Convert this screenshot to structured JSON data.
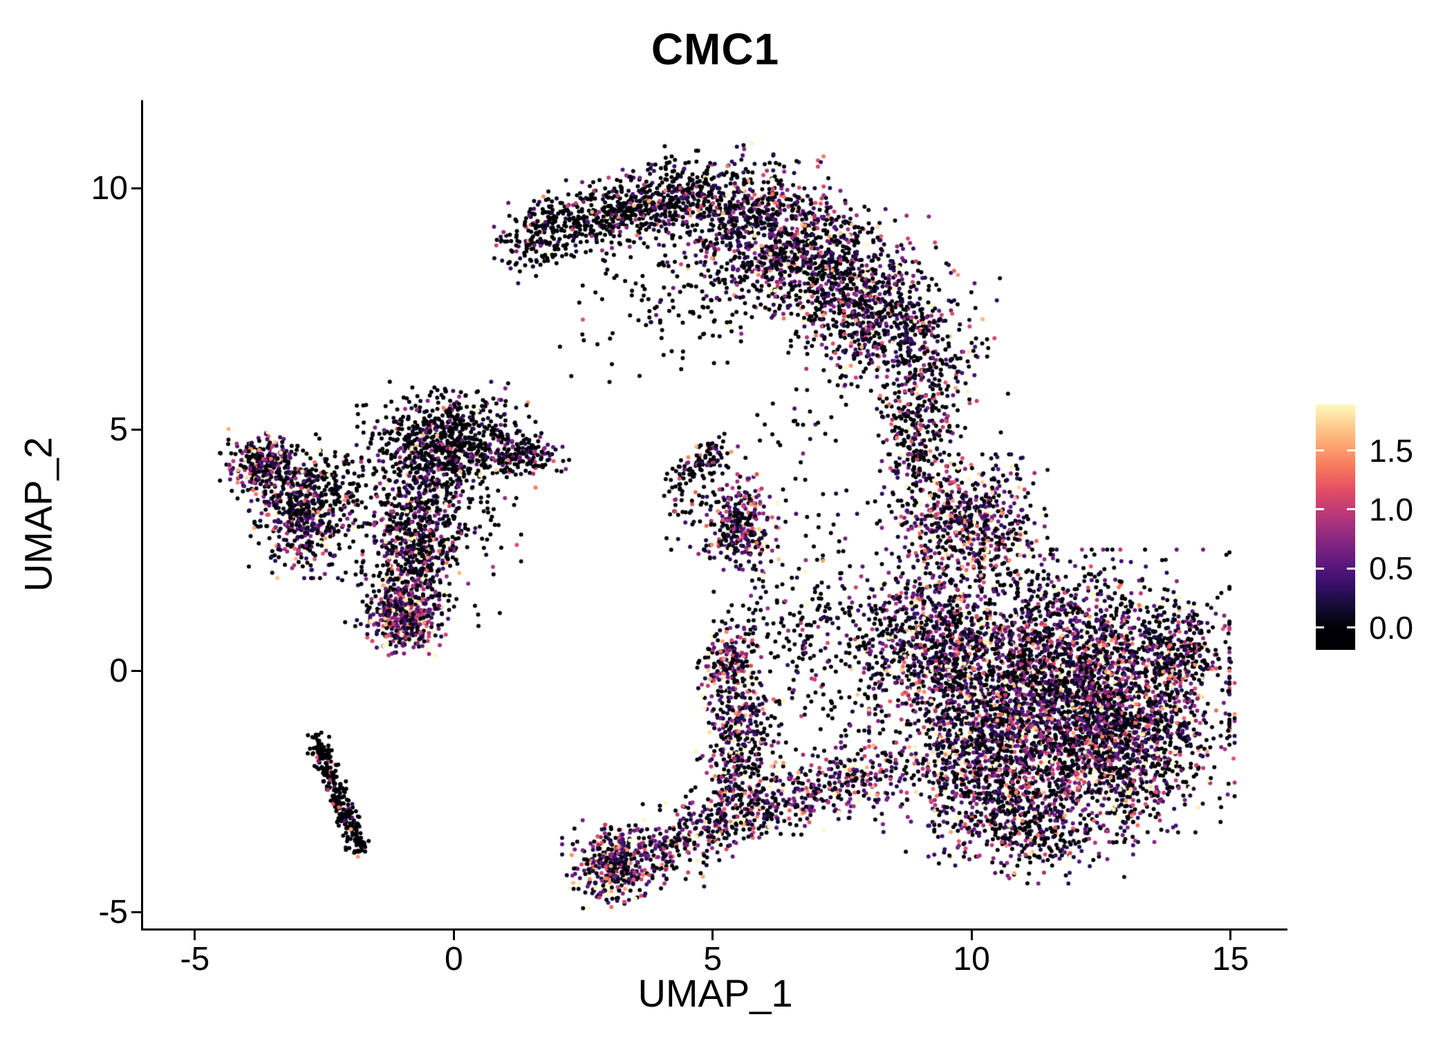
{
  "title": "CMC1",
  "axes": {
    "x": {
      "label": "UMAP_1",
      "ticks": [
        -5,
        0,
        5,
        10,
        15
      ]
    },
    "y": {
      "label": "UMAP_2",
      "ticks": [
        10,
        5,
        0,
        -5
      ]
    }
  },
  "colorbar": {
    "entries": [
      {
        "label": "1.5",
        "value": 1.5
      },
      {
        "label": "1.0",
        "value": 1.0
      },
      {
        "label": "0.5",
        "value": 0.5
      },
      {
        "label": "0.0",
        "value": 0.0
      }
    ],
    "vmin": -0.19,
    "vmax": 1.89
  },
  "chart_data": {
    "type": "scatter",
    "title": "CMC1",
    "xlabel": "UMAP_1",
    "ylabel": "UMAP_2",
    "xlim": [
      -6.0,
      16.1
    ],
    "ylim": [
      -5.33,
      11.83
    ],
    "grid": false,
    "legend_position": "right",
    "point_radius": 3,
    "seed": 42,
    "color_scale": {
      "name": "magma",
      "domain": [
        0,
        1.9
      ],
      "stops": [
        [
          0.0,
          "#000004"
        ],
        [
          0.1,
          "#140e36"
        ],
        [
          0.2,
          "#3b0f70"
        ],
        [
          0.3,
          "#641a80"
        ],
        [
          0.4,
          "#8c2981"
        ],
        [
          0.5,
          "#b73779"
        ],
        [
          0.6,
          "#de4968"
        ],
        [
          0.7,
          "#f7705c"
        ],
        [
          0.8,
          "#fe9f6d"
        ],
        [
          0.9,
          "#fdcd90"
        ],
        [
          1.0,
          "#fcfdbf"
        ]
      ]
    },
    "clusters": [
      {
        "name": "top-arc-left",
        "path": [
          [
            1.25,
            8.7
          ],
          [
            1.9,
            9.15
          ],
          [
            2.6,
            9.4
          ],
          [
            3.3,
            9.6
          ],
          [
            4.0,
            9.8
          ],
          [
            4.6,
            9.9
          ]
        ],
        "jitter": [
          0.38,
          0.33
        ],
        "count": 750,
        "p0": 0.72,
        "mean": 0.5
      },
      {
        "name": "top-arc-main",
        "path": [
          [
            4.9,
            9.7
          ],
          [
            5.7,
            9.4
          ],
          [
            6.4,
            8.95
          ],
          [
            7.1,
            8.45
          ],
          [
            7.8,
            7.8
          ],
          [
            8.45,
            7.1
          ],
          [
            8.95,
            6.35
          ]
        ],
        "jitter": [
          0.75,
          0.62
        ],
        "count": 2100,
        "p0": 0.45,
        "mean": 0.6
      },
      {
        "name": "top-arc-under",
        "center": [
          4.6,
          7.9
        ],
        "jitter": [
          1.05,
          0.75
        ],
        "count": 170,
        "p0": 0.8,
        "mean": 0.5
      },
      {
        "name": "right-connector",
        "path": [
          [
            9.2,
            6.1
          ],
          [
            9.05,
            5.4
          ],
          [
            8.95,
            4.7
          ],
          [
            9.05,
            4.05
          ]
        ],
        "jitter": [
          0.34,
          0.3
        ],
        "count": 280,
        "p0": 0.5,
        "mean": 0.6
      },
      {
        "name": "right-upper-blob",
        "center": [
          9.9,
          3.1
        ],
        "jitter": [
          0.68,
          0.58
        ],
        "count": 620,
        "p0": 0.33,
        "mean": 0.75
      },
      {
        "name": "right-main-1",
        "center": [
          11.5,
          0.0
        ],
        "jitter": [
          1.45,
          1.05
        ],
        "count": 2600,
        "p0": 0.38,
        "mean": 0.65
      },
      {
        "name": "right-main-2",
        "center": [
          12.8,
          -1.5
        ],
        "jitter": [
          0.95,
          0.85
        ],
        "count": 1200,
        "p0": 0.38,
        "mean": 0.65
      },
      {
        "name": "right-main-3",
        "center": [
          10.3,
          -1.8
        ],
        "jitter": [
          0.9,
          0.85
        ],
        "count": 900,
        "p0": 0.38,
        "mean": 0.65
      },
      {
        "name": "right-main-4",
        "center": [
          9.2,
          0.7
        ],
        "jitter": [
          0.65,
          0.75
        ],
        "count": 520,
        "p0": 0.4,
        "mean": 0.65
      },
      {
        "name": "right-tip",
        "center": [
          14.0,
          0.3
        ],
        "jitter": [
          0.42,
          0.48
        ],
        "count": 260,
        "p0": 0.42,
        "mean": 0.6
      },
      {
        "name": "right-bottom-tail",
        "center": [
          11.2,
          -3.2
        ],
        "jitter": [
          0.8,
          0.5
        ],
        "count": 380,
        "p0": 0.4,
        "mean": 0.6
      },
      {
        "name": "bottom-stream",
        "path": [
          [
            3.6,
            -3.9
          ],
          [
            4.4,
            -3.5
          ],
          [
            5.2,
            -3.1
          ],
          [
            6.0,
            -2.8
          ],
          [
            6.8,
            -2.5
          ],
          [
            7.6,
            -2.3
          ],
          [
            8.3,
            -2.1
          ]
        ],
        "jitter": [
          0.42,
          0.34
        ],
        "count": 720,
        "p0": 0.35,
        "mean": 0.7
      },
      {
        "name": "bottom-left-cluster",
        "center": [
          3.1,
          -4.0
        ],
        "jitter": [
          0.42,
          0.38
        ],
        "count": 380,
        "p0": 0.3,
        "mean": 0.7
      },
      {
        "name": "center-branch",
        "path": [
          [
            5.3,
            -2.5
          ],
          [
            5.5,
            -1.8
          ],
          [
            5.6,
            -1.1
          ],
          [
            5.5,
            -0.45
          ]
        ],
        "jitter": [
          0.33,
          0.3
        ],
        "count": 360,
        "p0": 0.38,
        "mean": 0.7
      },
      {
        "name": "center-branch-top",
        "center": [
          5.35,
          0.2
        ],
        "jitter": [
          0.27,
          0.33
        ],
        "count": 170,
        "p0": 0.28,
        "mean": 0.78
      },
      {
        "name": "center-sparse-upper",
        "center": [
          6.35,
          1.0
        ],
        "jitter": [
          0.45,
          0.55
        ],
        "count": 60,
        "p0": 0.7,
        "mean": 0.5
      },
      {
        "name": "mid-sparse",
        "center": [
          7.3,
          0.5
        ],
        "jitter": [
          0.95,
          1.15
        ],
        "count": 260,
        "p0": 0.62,
        "mean": 0.55
      },
      {
        "name": "small-center-arm",
        "path": [
          [
            4.35,
            4.0
          ],
          [
            4.75,
            4.3
          ],
          [
            5.15,
            4.6
          ]
        ],
        "jitter": [
          0.2,
          0.18
        ],
        "count": 100,
        "p0": 0.65,
        "mean": 0.55
      },
      {
        "name": "small-center-dense",
        "center": [
          5.55,
          3.0
        ],
        "jitter": [
          0.3,
          0.45
        ],
        "count": 280,
        "p0": 0.27,
        "mean": 0.75
      },
      {
        "name": "small-center-sparse",
        "center": [
          4.7,
          3.3
        ],
        "jitter": [
          0.4,
          0.4
        ],
        "count": 60,
        "p0": 0.7,
        "mean": 0.5
      },
      {
        "name": "left-group-west",
        "center": [
          -3.7,
          4.3
        ],
        "jitter": [
          0.34,
          0.3
        ],
        "count": 280,
        "p0": 0.38,
        "mean": 0.7
      },
      {
        "name": "left-group-main",
        "center": [
          -2.95,
          3.25
        ],
        "jitter": [
          0.42,
          0.55
        ],
        "count": 450,
        "p0": 0.42,
        "mean": 0.68
      },
      {
        "name": "left-group-bridge",
        "center": [
          -2.3,
          3.9
        ],
        "jitter": [
          0.5,
          0.45
        ],
        "count": 140,
        "p0": 0.68,
        "mean": 0.5
      },
      {
        "name": "centerleft-top",
        "center": [
          -0.15,
          4.75
        ],
        "jitter": [
          0.72,
          0.52
        ],
        "count": 720,
        "p0": 0.7,
        "mean": 0.5
      },
      {
        "name": "centerleft-arm",
        "path": [
          [
            0.8,
            4.5
          ],
          [
            1.35,
            4.5
          ],
          [
            1.8,
            4.42
          ]
        ],
        "jitter": [
          0.24,
          0.2
        ],
        "count": 150,
        "p0": 0.6,
        "mean": 0.55
      },
      {
        "name": "centerleft-band",
        "path": [
          [
            -0.5,
            3.9
          ],
          [
            -0.68,
            3.2
          ],
          [
            -0.8,
            2.5
          ],
          [
            -0.9,
            1.8
          ],
          [
            -0.95,
            1.15
          ]
        ],
        "jitter": [
          0.4,
          0.34
        ],
        "count": 680,
        "p0": 0.45,
        "mean": 0.62
      },
      {
        "name": "centerleft-dense",
        "center": [
          -0.95,
          1.05
        ],
        "jitter": [
          0.3,
          0.3
        ],
        "count": 330,
        "p0": 0.22,
        "mean": 0.8
      },
      {
        "name": "centerleft-scatter",
        "center": [
          -0.5,
          2.8
        ],
        "jitter": [
          0.75,
          0.8
        ],
        "count": 210,
        "p0": 0.75,
        "mean": 0.5
      },
      {
        "name": "left-streak",
        "path": [
          [
            -2.62,
            -1.45
          ],
          [
            -2.45,
            -1.95
          ],
          [
            -2.27,
            -2.45
          ],
          [
            -2.1,
            -2.95
          ],
          [
            -1.93,
            -3.35
          ],
          [
            -1.78,
            -3.75
          ]
        ],
        "jitter": [
          0.11,
          0.11
        ],
        "count": 270,
        "p0": 0.9,
        "mean": 0.55
      },
      {
        "name": "noise-mid-upper",
        "center": [
          6.7,
          5.1
        ],
        "jitter": [
          0.6,
          0.5
        ],
        "count": 26,
        "p0": 0.85,
        "mean": 0.4
      },
      {
        "name": "noise-mid",
        "center": [
          7.0,
          3.1
        ],
        "jitter": [
          0.8,
          0.7
        ],
        "count": 30,
        "p0": 0.85,
        "mean": 0.4
      },
      {
        "name": "noise-topleft",
        "center": [
          2.95,
          6.7
        ],
        "jitter": [
          0.45,
          0.35
        ],
        "count": 10,
        "p0": 0.85,
        "mean": 0.4
      }
    ]
  }
}
